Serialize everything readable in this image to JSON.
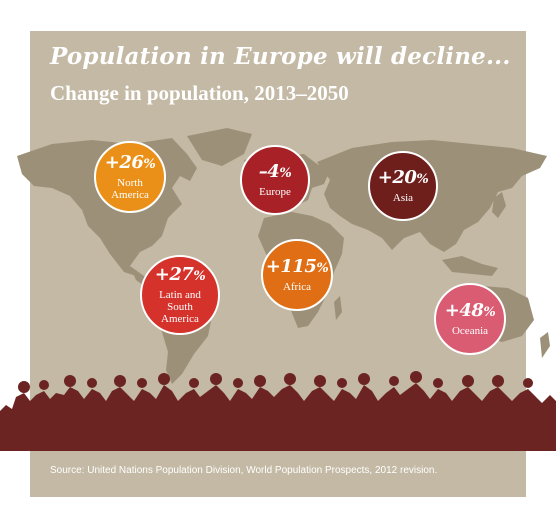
{
  "infographic": {
    "title": "Population in Europe will decline...",
    "subtitle": "Change in population, 2013–2050",
    "source": "Source: United Nations Population Division, World Population Prospects, 2012 revision.",
    "colors": {
      "background": "#c3b9a4",
      "map": "#9c9178",
      "crowd": "#6b2421"
    },
    "regions": [
      {
        "id": "north-america",
        "value": "+26",
        "unit": "%",
        "label": [
          "North",
          "America"
        ],
        "color": "#ea9019"
      },
      {
        "id": "europe",
        "value": "–4",
        "unit": "%",
        "label": [
          "Europe"
        ],
        "color": "#a72126"
      },
      {
        "id": "asia",
        "value": "+20",
        "unit": "%",
        "label": [
          "Asia"
        ],
        "color": "#6e1f1c"
      },
      {
        "id": "africa",
        "value": "+115",
        "unit": "%",
        "label": [
          "Africa"
        ],
        "color": "#df6e14"
      },
      {
        "id": "latin-america",
        "value": "+27",
        "unit": "%",
        "label": [
          "Latin and",
          "South",
          "America"
        ],
        "color": "#d6322c"
      },
      {
        "id": "oceania",
        "value": "+48",
        "unit": "%",
        "label": [
          "Oceania"
        ],
        "color": "#d95c72"
      }
    ]
  }
}
